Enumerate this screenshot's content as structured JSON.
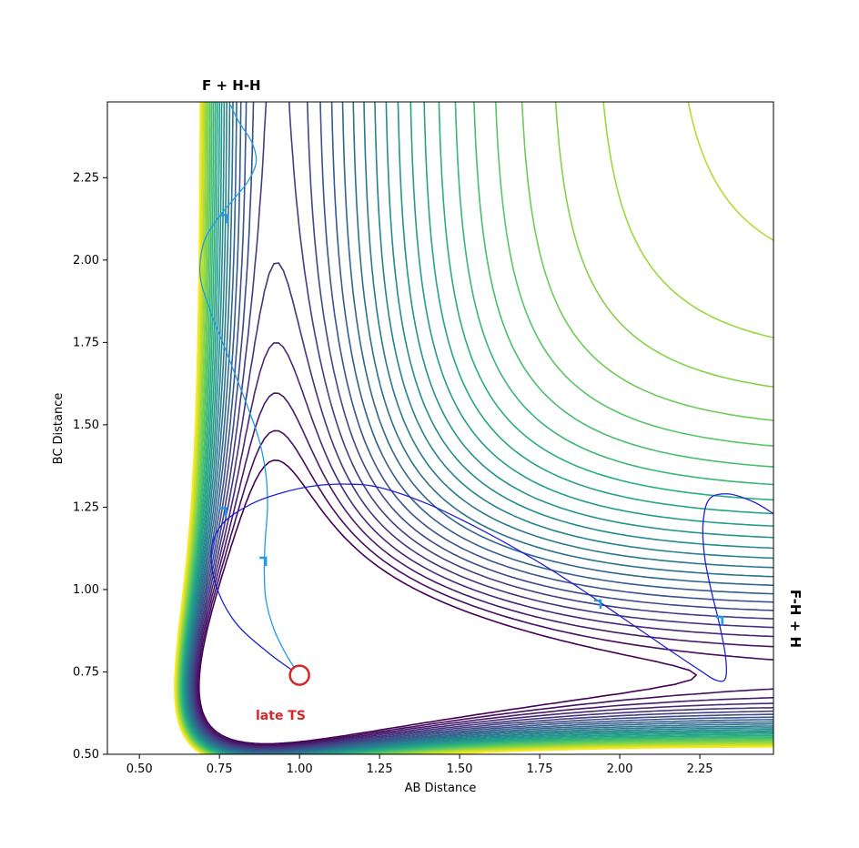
{
  "chart_data": {
    "type": "contour",
    "xlabel": "AB Distance",
    "ylabel": "BC Distance",
    "xlim": [
      0.4,
      2.48
    ],
    "ylim": [
      0.5,
      2.48
    ],
    "xticks": [
      0.5,
      0.75,
      1.0,
      1.25,
      1.5,
      1.75,
      2.0,
      2.25
    ],
    "yticks": [
      0.5,
      0.75,
      1.0,
      1.25,
      1.5,
      1.75,
      2.0,
      2.25
    ],
    "xtick_labels": [
      "0.50",
      "0.75",
      "1.00",
      "1.25",
      "1.50",
      "1.75",
      "2.00",
      "2.25"
    ],
    "ytick_labels": [
      "0.50",
      "0.75",
      "1.00",
      "1.25",
      "1.50",
      "1.75",
      "2.00",
      "2.25"
    ],
    "grid": false,
    "colormap": "viridis",
    "annotations": {
      "reactants": "F + H-H",
      "products": "F-H + H",
      "transition_state_label": "late TS"
    },
    "transition_state": {
      "x": 1.0,
      "y": 0.74,
      "color": "#d62728"
    },
    "trajectories": [
      {
        "color": "#1f9be6",
        "points": [
          [
            1.0,
            0.74
          ],
          [
            0.96,
            0.8
          ],
          [
            0.92,
            0.88
          ],
          [
            0.895,
            0.97
          ],
          [
            0.89,
            1.06
          ],
          [
            0.893,
            1.15
          ],
          [
            0.9,
            1.25
          ],
          [
            0.895,
            1.35
          ],
          [
            0.875,
            1.45
          ],
          [
            0.84,
            1.55
          ],
          [
            0.8,
            1.65
          ],
          [
            0.76,
            1.75
          ],
          [
            0.72,
            1.85
          ],
          [
            0.69,
            1.95
          ],
          [
            0.7,
            2.05
          ],
          [
            0.74,
            2.12
          ],
          [
            0.79,
            2.18
          ],
          [
            0.84,
            2.24
          ],
          [
            0.865,
            2.3
          ],
          [
            0.85,
            2.36
          ],
          [
            0.81,
            2.42
          ],
          [
            0.785,
            2.47
          ]
        ],
        "arrows": [
          [
            0.895,
            1.08
          ],
          [
            0.775,
            2.12
          ]
        ]
      },
      {
        "color": "#1f1fd6",
        "points": [
          [
            1.0,
            0.74
          ],
          [
            0.9,
            0.81
          ],
          [
            0.8,
            0.9
          ],
          [
            0.74,
            1.01
          ],
          [
            0.725,
            1.12
          ],
          [
            0.76,
            1.2
          ],
          [
            0.85,
            1.26
          ],
          [
            0.95,
            1.295
          ],
          [
            1.05,
            1.315
          ],
          [
            1.15,
            1.32
          ],
          [
            1.25,
            1.31
          ],
          [
            1.4,
            1.26
          ],
          [
            1.55,
            1.19
          ],
          [
            1.7,
            1.11
          ],
          [
            1.85,
            1.02
          ],
          [
            2.0,
            0.92
          ],
          [
            2.15,
            0.82
          ],
          [
            2.25,
            0.755
          ],
          [
            2.3,
            0.725
          ],
          [
            2.33,
            0.73
          ],
          [
            2.33,
            0.8
          ],
          [
            2.31,
            0.9
          ],
          [
            2.285,
            1.0
          ],
          [
            2.265,
            1.1
          ],
          [
            2.26,
            1.2
          ],
          [
            2.28,
            1.275
          ],
          [
            2.34,
            1.29
          ],
          [
            2.42,
            1.265
          ],
          [
            2.48,
            1.23
          ]
        ],
        "arrows": [
          [
            0.77,
            1.23
          ],
          [
            1.94,
            0.95
          ],
          [
            2.32,
            0.9
          ]
        ]
      }
    ]
  }
}
